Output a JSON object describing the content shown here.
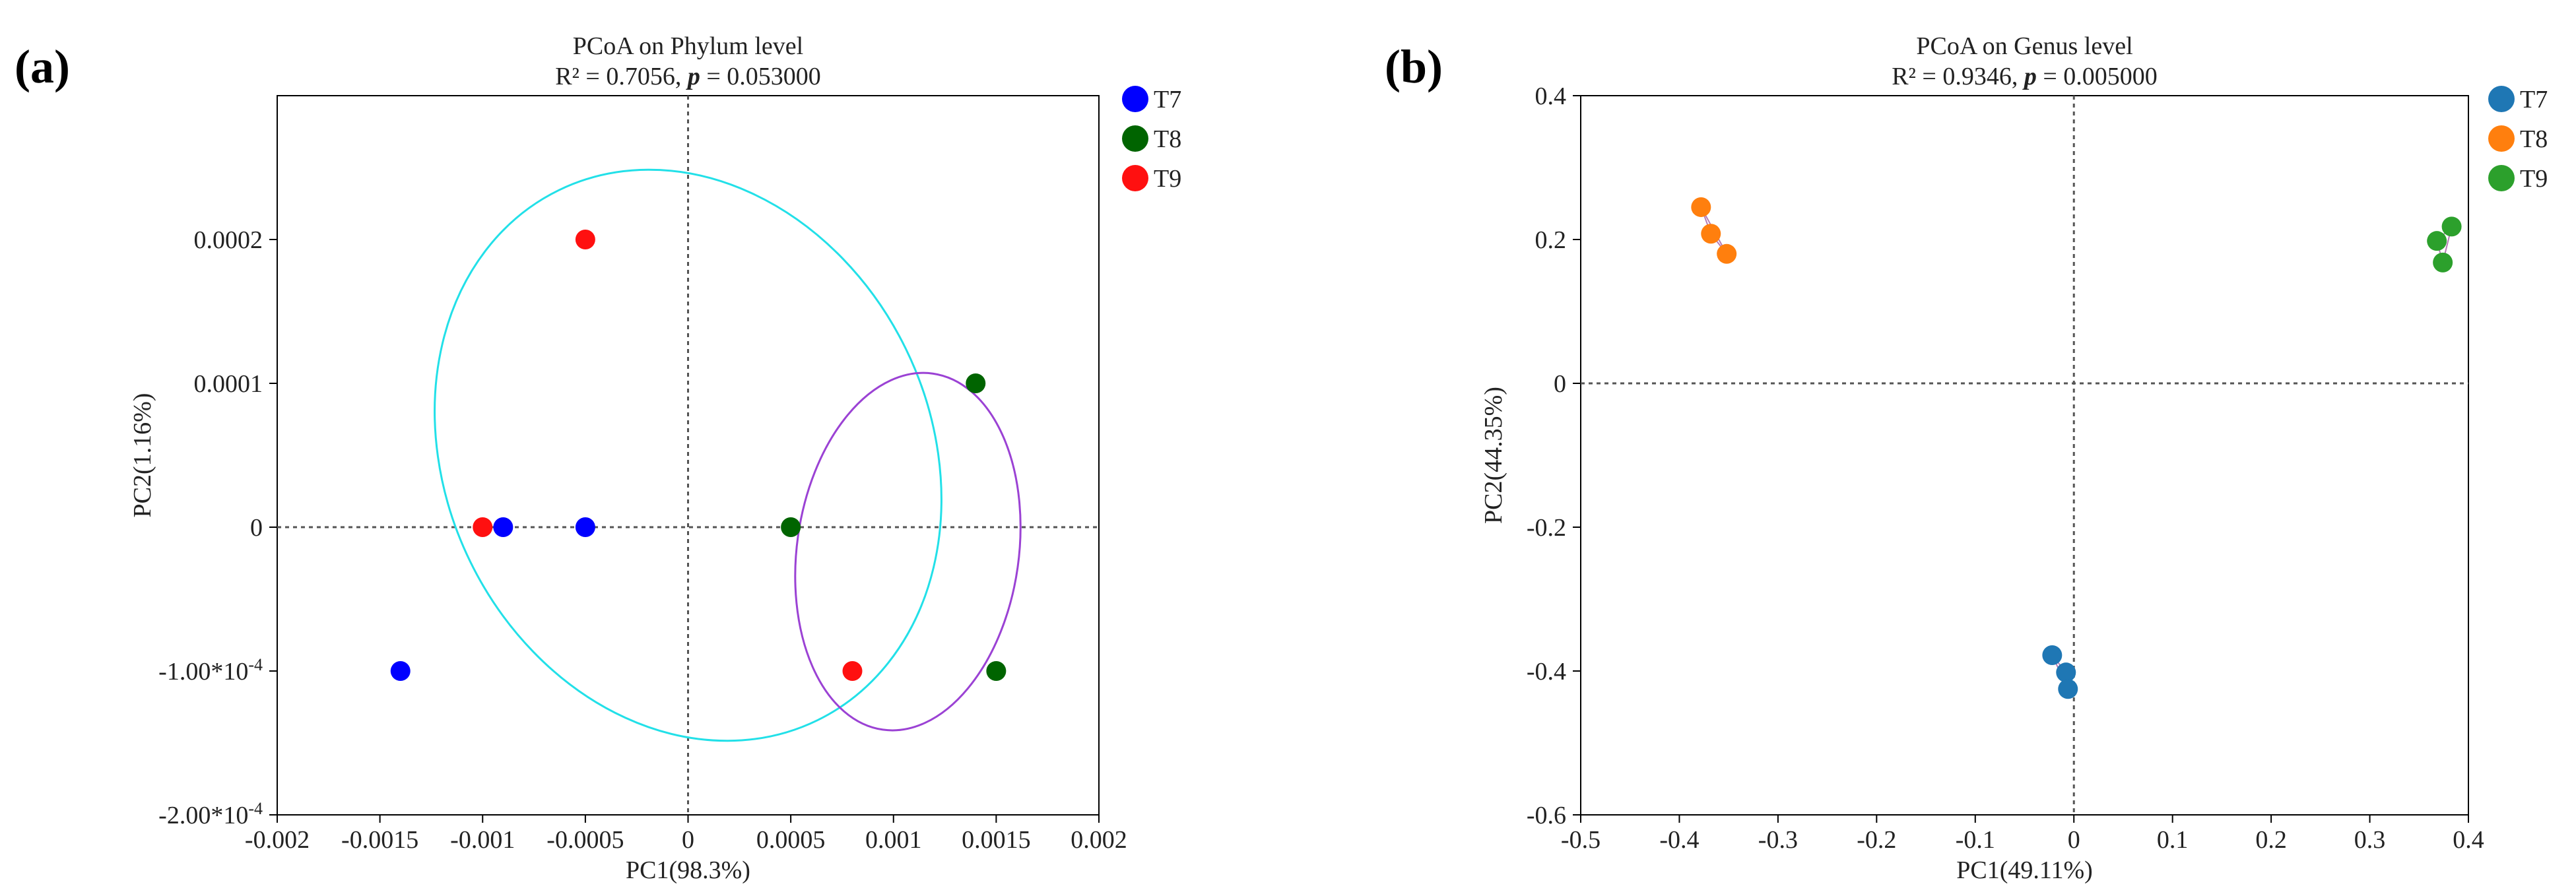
{
  "chart_data": [
    {
      "type": "scatter",
      "panel_label": "(a)",
      "title": "PCoA on Phylum level",
      "subtitle_prefix": "R² = 0.7056, ",
      "subtitle_p": "p",
      "subtitle_suffix": " = 0.053000",
      "xlabel": "PC1(98.3%)",
      "ylabel": "PC2(1.16%)",
      "xlim": [
        -0.002,
        0.002
      ],
      "ylim": [
        -0.0002,
        0.0003
      ],
      "xticks": [
        -0.002,
        -0.0015,
        -0.001,
        -0.0005,
        0,
        0.0005,
        0.001,
        0.0015,
        0.002
      ],
      "xtick_labels": [
        "-0.002",
        "-0.0015",
        "-0.001",
        "-0.0005",
        "0",
        "0.0005",
        "0.001",
        "0.0015",
        "0.002"
      ],
      "yticks": [
        -0.0002,
        -0.0001,
        0,
        0.0001,
        0.0002
      ],
      "ytick_labels": [
        "-2.00*10^-4",
        "-1.00*10^-4",
        "0",
        "0.0001",
        "0.0002"
      ],
      "zero_lines": true,
      "legend_position": "right",
      "ellipses": [
        {
          "group": "T9",
          "color": "#22e0e8",
          "cx": 0.0,
          "cy": 5e-05,
          "rx": 0.00118,
          "ry": 0.000205,
          "angle_deg": -26
        },
        {
          "group": "T8",
          "color": "#9b42d4",
          "cx": 0.00107,
          "cy": -1.7e-05,
          "rx": 0.00054,
          "ry": 0.000125,
          "angle_deg": 8
        }
      ],
      "series": [
        {
          "name": "T7",
          "color": "#0000ff",
          "points": [
            [
              -0.0014,
              -0.0001
            ],
            [
              -0.0009,
              0
            ],
            [
              -0.0005,
              0
            ]
          ]
        },
        {
          "name": "T8",
          "color": "#006400",
          "points": [
            [
              0.0014,
              0.0001
            ],
            [
              0.0005,
              0
            ],
            [
              0.0015,
              -0.0001
            ]
          ]
        },
        {
          "name": "T9",
          "color": "#ff1010",
          "points": [
            [
              -0.0005,
              0.0002
            ],
            [
              -0.001,
              0
            ],
            [
              0.0008,
              -0.0001
            ]
          ]
        }
      ]
    },
    {
      "type": "scatter",
      "panel_label": "(b)",
      "title": "PCoA on Genus level",
      "subtitle_prefix": "R² = 0.9346, ",
      "subtitle_p": "p",
      "subtitle_suffix": " = 0.005000",
      "xlabel": "PC1(49.11%)",
      "ylabel": "PC2(44.35%)",
      "xlim": [
        -0.5,
        0.4
      ],
      "ylim": [
        -0.6,
        0.4
      ],
      "xticks": [
        -0.5,
        -0.4,
        -0.3,
        -0.2,
        -0.1,
        0,
        0.1,
        0.2,
        0.3,
        0.4
      ],
      "xtick_labels": [
        "-0.5",
        "-0.4",
        "-0.3",
        "-0.2",
        "-0.1",
        "0",
        "0.1",
        "0.2",
        "0.3",
        "0.4"
      ],
      "yticks": [
        -0.6,
        -0.4,
        -0.2,
        0,
        0.2,
        0.4
      ],
      "ytick_labels": [
        "-0.6",
        "-0.4",
        "-0.2",
        "0",
        "0.2",
        "0.4"
      ],
      "zero_lines": true,
      "legend_position": "right",
      "series": [
        {
          "name": "T7",
          "color": "#1f77b4",
          "points": [
            [
              -0.022,
              -0.378
            ],
            [
              -0.008,
              -0.402
            ],
            [
              -0.006,
              -0.425
            ]
          ]
        },
        {
          "name": "T8",
          "color": "#ff7f0e",
          "points": [
            [
              -0.378,
              0.245
            ],
            [
              -0.368,
              0.208
            ],
            [
              -0.352,
              0.18
            ]
          ]
        },
        {
          "name": "T9",
          "color": "#2ca02c",
          "points": [
            [
              0.368,
              0.198
            ],
            [
              0.383,
              0.218
            ],
            [
              0.374,
              0.168
            ]
          ]
        }
      ]
    }
  ]
}
